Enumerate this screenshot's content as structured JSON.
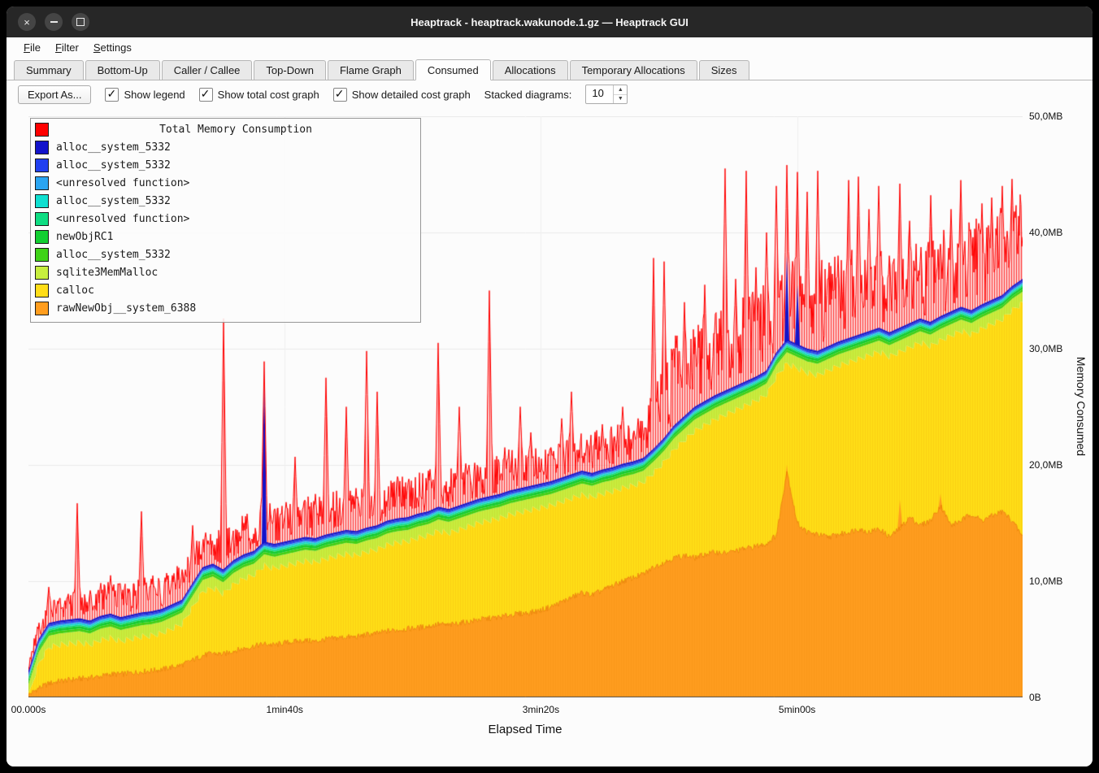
{
  "window": {
    "title": "Heaptrack - heaptrack.wakunode.1.gz — Heaptrack GUI"
  },
  "icons": {
    "close": "×",
    "spin_up": "▲",
    "spin_down": "▼"
  },
  "menubar": {
    "items": [
      "File",
      "Filter",
      "Settings"
    ]
  },
  "tabs": {
    "items": [
      "Summary",
      "Bottom-Up",
      "Caller / Callee",
      "Top-Down",
      "Flame Graph",
      "Consumed",
      "Allocations",
      "Temporary Allocations",
      "Sizes"
    ],
    "active": "Consumed"
  },
  "toolbar": {
    "export_label": "Export As...",
    "checkboxes": [
      {
        "label": "Show legend",
        "checked": true
      },
      {
        "label": "Show total cost graph",
        "checked": true
      },
      {
        "label": "Show detailed cost graph",
        "checked": true
      }
    ],
    "stacked_label": "Stacked diagrams:",
    "stacked_value": "10"
  },
  "chart_data": {
    "type": "area",
    "title": "Total Memory Consumption",
    "xlabel": "Elapsed Time",
    "ylabel": "Memory Consumed",
    "legend_position": "top-left",
    "grid": true,
    "ylim_mb": [
      0,
      50
    ],
    "x_max_seconds": 388,
    "t_step_seconds": 4,
    "x_ticks": [
      {
        "t": 0,
        "label": "00.000s"
      },
      {
        "t": 100,
        "label": "1min40s"
      },
      {
        "t": 200,
        "label": "3min20s"
      },
      {
        "t": 300,
        "label": "5min00s"
      }
    ],
    "y_ticks": [
      {
        "mb": 0,
        "label": "0B"
      },
      {
        "mb": 10,
        "label": "10,0MB"
      },
      {
        "mb": 20,
        "label": "20,0MB"
      },
      {
        "mb": 30,
        "label": "30,0MB"
      },
      {
        "mb": 40,
        "label": "40,0MB"
      },
      {
        "mb": 50,
        "label": "50,0MB"
      }
    ],
    "series": [
      {
        "name": "rawNewObj__system_6388",
        "color": "#ff9d1e",
        "values": [
          0.2,
          0.8,
          1.2,
          1.4,
          1.5,
          1.6,
          1.7,
          1.8,
          2.0,
          2.0,
          2.1,
          2.2,
          2.3,
          2.4,
          2.6,
          2.8,
          3.2,
          3.6,
          3.8,
          3.7,
          4.0,
          4.2,
          4.4,
          4.6,
          4.5,
          4.7,
          4.8,
          4.9,
          4.8,
          5.0,
          5.1,
          5.2,
          5.2,
          5.4,
          5.5,
          5.7,
          5.8,
          5.9,
          6.0,
          6.1,
          6.3,
          6.2,
          6.4,
          6.5,
          6.7,
          6.8,
          6.9,
          7.1,
          7.2,
          7.3,
          7.5,
          7.8,
          8.2,
          8.6,
          9.0,
          8.8,
          9.2,
          9.6,
          10.0,
          10.3,
          10.6,
          11.2,
          11.6,
          12.0,
          12.2,
          12.0,
          12.3,
          12.5,
          12.4,
          12.6,
          12.8,
          13.0,
          13.2,
          14.0,
          19.5,
          15.0,
          14.2,
          14.0,
          13.8,
          14.0,
          14.2,
          14.5,
          14.2,
          14.5,
          13.8,
          14.5,
          15.5,
          14.8,
          15.2,
          16.5,
          14.8,
          15.2,
          15.8,
          15.2,
          15.6,
          16.0,
          15.2,
          13.8
        ],
        "spikes": [
          [
            296,
            20.0
          ],
          [
            340,
            17.0
          ],
          [
            356,
            17.5
          ]
        ]
      },
      {
        "name": "calloc",
        "color": "#ffdd17",
        "sawtooth_mb": 0.6,
        "values": [
          0.2,
          2.4,
          3.4,
          3.4,
          3.4,
          3.4,
          3.1,
          3.4,
          3.4,
          3.1,
          3.2,
          3.3,
          3.3,
          3.4,
          3.6,
          3.8,
          4.8,
          5.8,
          5.9,
          5.5,
          6.0,
          6.3,
          6.4,
          7.0,
          6.9,
          6.9,
          7.0,
          7.1,
          7.1,
          7.2,
          7.3,
          7.4,
          7.3,
          7.4,
          7.5,
          7.7,
          7.8,
          7.8,
          8.0,
          8.1,
          8.3,
          8.2,
          8.3,
          8.5,
          8.6,
          8.7,
          8.8,
          8.9,
          9.0,
          9.1,
          9.1,
          9.0,
          8.9,
          8.8,
          8.7,
          8.7,
          8.6,
          8.4,
          8.3,
          8.2,
          8.2,
          8.4,
          8.9,
          9.6,
          10.2,
          11.2,
          11.4,
          11.7,
          12.2,
          12.4,
          12.6,
          12.8,
          13.1,
          13.9,
          9.5,
          13.6,
          14.0,
          14.0,
          14.6,
          14.8,
          14.9,
          14.9,
          15.5,
          15.5,
          15.8,
          15.5,
          14.9,
          16.0,
          15.3,
          14.5,
          16.6,
          16.6,
          15.7,
          16.8,
          16.8,
          16.8,
          18.4,
          20.4
        ]
      },
      {
        "name": "sqlite3MemMalloc",
        "color": "#c7ee3e",
        "constant_mb": 0.7
      },
      {
        "name": "alloc__system_5332",
        "color": "#3fd317",
        "constant_mb": 0.22
      },
      {
        "name": "newObjRC1",
        "color": "#12cf31",
        "constant_mb": 0.22
      },
      {
        "name": "<unresolved function>",
        "color": "#0edd82",
        "constant_mb": 0.12
      },
      {
        "name": "alloc__system_5332",
        "color": "#0fdfd0",
        "constant_mb": 0.12
      },
      {
        "name": "<unresolved function>",
        "color": "#2aa5f2",
        "constant_mb": 0.12
      },
      {
        "name": "alloc__system_5332",
        "color": "#2140f0",
        "constant_mb": 0.15
      },
      {
        "name": "alloc__system_5332",
        "color": "#1313cb",
        "constant_mb": 0.12,
        "spikes": [
          [
            92,
            28.5
          ],
          [
            296,
            38.0
          ],
          [
            300,
            35.5
          ]
        ]
      }
    ],
    "total": {
      "name": "Total Memory Consumption",
      "color": "#ff0000",
      "base_offset_mb": 0.2,
      "jitter_mb": [
        [
          0,
          1.2
        ],
        [
          20,
          2.6
        ],
        [
          100,
          3.4
        ],
        [
          240,
          3.4
        ],
        [
          246,
          7.5
        ],
        [
          388,
          7.5
        ]
      ],
      "spikes": [
        [
          8,
          9.5
        ],
        [
          12,
          8.5
        ],
        [
          19,
          16.7
        ],
        [
          24,
          9.2
        ],
        [
          32,
          10.5
        ],
        [
          36,
          9.8
        ],
        [
          44,
          16.0
        ],
        [
          48,
          10.2
        ],
        [
          56,
          10.5
        ],
        [
          60,
          11.0
        ],
        [
          64,
          14.8
        ],
        [
          70,
          13.5
        ],
        [
          76,
          32.6
        ],
        [
          84,
          15.0
        ],
        [
          92,
          28.9
        ],
        [
          100,
          15.5
        ],
        [
          104,
          20.7
        ],
        [
          112,
          17.5
        ],
        [
          116,
          27.5
        ],
        [
          124,
          25.0
        ],
        [
          128,
          18.0
        ],
        [
          132,
          29.8
        ],
        [
          136,
          26.3
        ],
        [
          144,
          19.0
        ],
        [
          148,
          18.5
        ],
        [
          156,
          19.5
        ],
        [
          160,
          30.5
        ],
        [
          168,
          25.0
        ],
        [
          172,
          20.0
        ],
        [
          180,
          35.0
        ],
        [
          186,
          21.5
        ],
        [
          192,
          25.0
        ],
        [
          196,
          22.8
        ],
        [
          204,
          21.5
        ],
        [
          208,
          24.0
        ],
        [
          212,
          26.3
        ],
        [
          218,
          22.0
        ],
        [
          224,
          23.5
        ],
        [
          232,
          25.0
        ],
        [
          238,
          24.0
        ],
        [
          244,
          37.8
        ],
        [
          248,
          37.5
        ],
        [
          252,
          30.0
        ],
        [
          256,
          34.0
        ],
        [
          260,
          31.0
        ],
        [
          264,
          35.5
        ],
        [
          268,
          33.0
        ],
        [
          272,
          45.5
        ],
        [
          276,
          36.0
        ],
        [
          280,
          45.3
        ],
        [
          284,
          37.0
        ],
        [
          288,
          40.0
        ],
        [
          292,
          44.0
        ],
        [
          296,
          45.8
        ],
        [
          300,
          45.2
        ],
        [
          304,
          43.5
        ],
        [
          308,
          45.3
        ],
        [
          312,
          36.0
        ],
        [
          316,
          38.0
        ],
        [
          320,
          44.5
        ],
        [
          324,
          44.8
        ],
        [
          328,
          42.0
        ],
        [
          332,
          44.0
        ],
        [
          336,
          38.0
        ],
        [
          340,
          44.2
        ],
        [
          344,
          41.0
        ],
        [
          348,
          37.5
        ],
        [
          352,
          43.2
        ],
        [
          356,
          39.0
        ],
        [
          360,
          42.0
        ],
        [
          364,
          44.5
        ],
        [
          368,
          39.5
        ],
        [
          372,
          42.5
        ],
        [
          376,
          43.0
        ],
        [
          380,
          44.0
        ],
        [
          384,
          44.6
        ],
        [
          387,
          41.0
        ]
      ]
    }
  }
}
